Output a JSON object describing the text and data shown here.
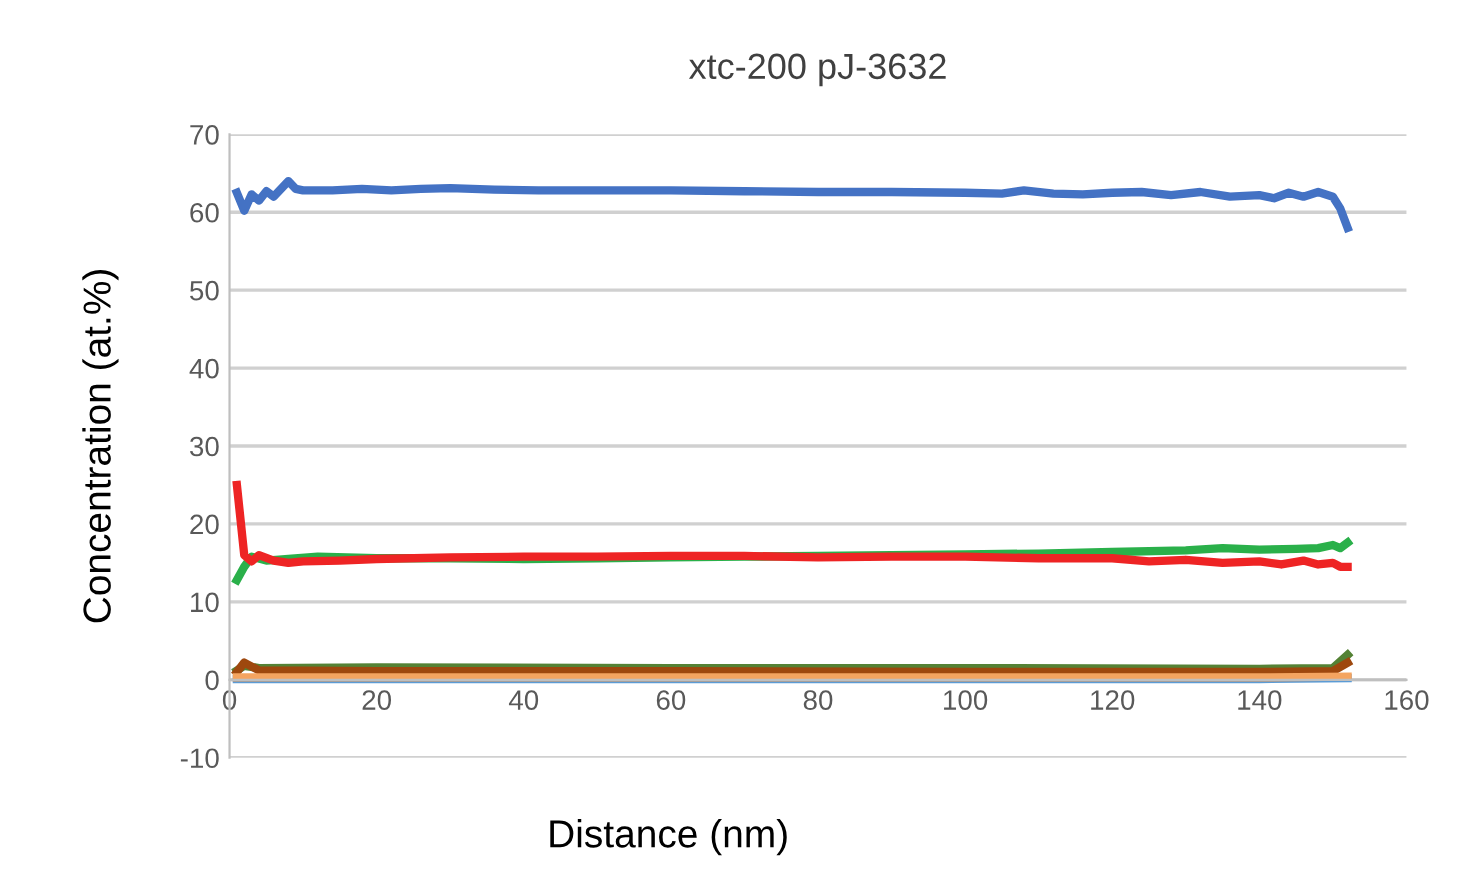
{
  "chart_data": {
    "type": "line",
    "title": "xtc-200 pJ-3632",
    "xlabel": "Distance (nm)",
    "ylabel": "Concentration (at.%)",
    "xlim": [
      0,
      160
    ],
    "ylim": [
      -10,
      70
    ],
    "xticks": [
      0,
      20,
      40,
      60,
      80,
      100,
      120,
      140,
      160
    ],
    "yticks": [
      -10,
      0,
      10,
      20,
      30,
      40,
      50,
      60,
      70
    ],
    "grid": "y",
    "legend": false,
    "marker": "none",
    "line_style": "solid",
    "series": [
      {
        "color": "#4472c4",
        "x": [
          1,
          2,
          3,
          4,
          5,
          6,
          7,
          8,
          9,
          10,
          14,
          18,
          22,
          26,
          30,
          36,
          42,
          50,
          60,
          70,
          80,
          90,
          100,
          105,
          108,
          112,
          116,
          120,
          124,
          128,
          132,
          136,
          140,
          142,
          144,
          146,
          148,
          150,
          151,
          152
        ],
        "values": [
          62.5,
          60.2,
          62.3,
          61.5,
          62.7,
          62.0,
          63.0,
          64.0,
          63.0,
          62.8,
          62.8,
          63.0,
          62.8,
          63.0,
          63.1,
          62.9,
          62.8,
          62.8,
          62.8,
          62.7,
          62.6,
          62.6,
          62.5,
          62.4,
          62.8,
          62.4,
          62.3,
          62.5,
          62.6,
          62.2,
          62.6,
          62.0,
          62.2,
          61.8,
          62.5,
          62.0,
          62.6,
          62.0,
          60.5,
          58.0
        ]
      },
      {
        "color": "#2ab04a",
        "x": [
          1,
          2,
          3,
          5,
          8,
          12,
          20,
          30,
          40,
          50,
          60,
          70,
          80,
          90,
          100,
          110,
          120,
          130,
          135,
          140,
          145,
          148,
          150,
          151,
          152
        ],
        "values": [
          12.8,
          14.5,
          15.8,
          15.3,
          15.5,
          15.8,
          15.6,
          15.6,
          15.5,
          15.6,
          15.7,
          15.8,
          15.9,
          16.0,
          16.1,
          16.2,
          16.4,
          16.6,
          16.9,
          16.7,
          16.8,
          16.9,
          17.3,
          16.9,
          17.6
        ]
      },
      {
        "color": "#ee2424",
        "x": [
          1,
          2,
          3,
          4,
          6,
          8,
          10,
          15,
          20,
          30,
          40,
          50,
          60,
          70,
          80,
          90,
          100,
          110,
          120,
          125,
          130,
          135,
          140,
          143,
          146,
          148,
          150,
          151,
          152
        ],
        "values": [
          25.0,
          16.0,
          15.2,
          16.0,
          15.3,
          15.0,
          15.2,
          15.3,
          15.5,
          15.7,
          15.8,
          15.8,
          15.9,
          15.9,
          15.7,
          15.8,
          15.8,
          15.6,
          15.6,
          15.2,
          15.4,
          15.0,
          15.2,
          14.8,
          15.3,
          14.8,
          15.0,
          14.5,
          14.5
        ]
      },
      {
        "color": "#548235",
        "x": [
          1,
          2,
          4,
          20,
          60,
          100,
          140,
          150,
          152
        ],
        "values": [
          1.2,
          1.8,
          1.5,
          1.6,
          1.5,
          1.5,
          1.4,
          1.5,
          3.2
        ]
      },
      {
        "color": "#9e480e",
        "x": [
          1,
          2,
          4,
          20,
          60,
          100,
          140,
          150,
          152
        ],
        "values": [
          1.0,
          2.2,
          1.2,
          1.1,
          1.1,
          1.0,
          1.0,
          1.1,
          2.2
        ]
      },
      {
        "color": "#5b9bd5",
        "x": [
          1,
          20,
          60,
          100,
          140,
          152
        ],
        "values": [
          0.1,
          0.1,
          0.1,
          0.1,
          0.1,
          0.2
        ]
      },
      {
        "color": "#f4a460",
        "x": [
          1,
          20,
          60,
          100,
          140,
          152
        ],
        "values": [
          0.3,
          0.3,
          0.3,
          0.3,
          0.3,
          0.4
        ]
      }
    ]
  }
}
